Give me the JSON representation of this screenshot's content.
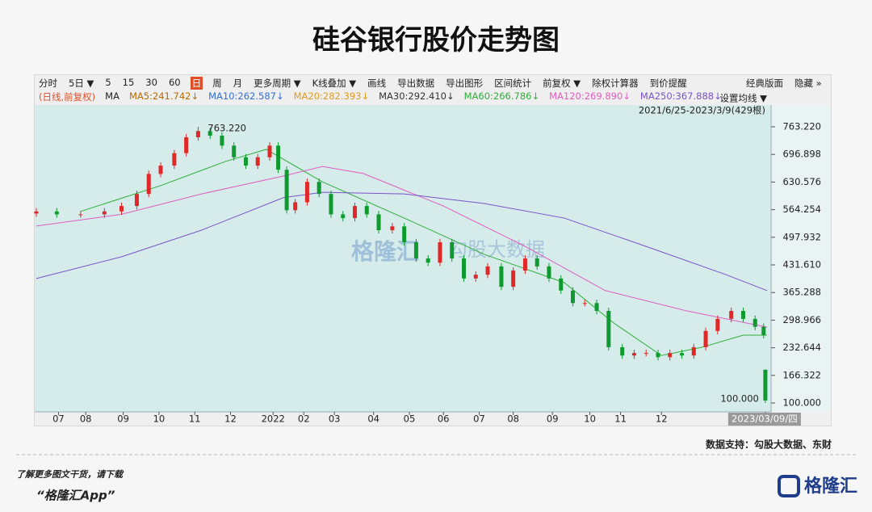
{
  "page": {
    "title": "硅谷银行股价走势图",
    "toolbar": [
      "分时",
      "5日 ▼",
      "5",
      "15",
      "30",
      "60",
      "日",
      "周",
      "月",
      "更多周期 ▼",
      "K线叠加 ▼",
      "画线",
      "导出数据",
      "导出图形",
      "区间统计",
      "前复权 ▼",
      "除权计算器",
      "到价提醒"
    ],
    "toolbar_active": "日",
    "toolbar_right": [
      "经典版面",
      "隐藏 »"
    ],
    "source": "数据支持：勾股大数据、东财",
    "footer_line1": "了解更多图文干货，请下载",
    "footer_line2": "“格隆汇App”",
    "logo": "格隆汇",
    "watermark": [
      "格隆汇",
      "勾股大数据"
    ]
  },
  "chart_data": {
    "type": "candlestick",
    "mode_label": "(日线,前复权)",
    "ma_label": "MA",
    "range_label": "2021/6/25-2023/3/9(429根)",
    "ma_setting": "设置均线 ▼",
    "high_label": "763.220",
    "low_label": "100.000",
    "x": [
      0,
      12,
      26,
      40,
      50,
      59,
      66,
      73,
      81,
      88,
      95,
      102,
      109,
      116,
      123,
      130,
      137,
      142,
      147,
      152,
      159,
      166,
      173,
      180,
      187,
      194,
      201,
      209,
      216,
      223,
      230,
      237,
      244,
      251,
      258,
      265,
      273,
      280,
      287,
      294,
      301,
      308,
      315,
      322,
      329,
      336,
      344,
      351,
      358,
      365,
      372,
      379,
      386,
      393,
      400,
      408,
      415,
      422,
      427,
      428
    ],
    "open": [
      555,
      560,
      553,
      553,
      560,
      573,
      602,
      650,
      670,
      700,
      738,
      753,
      742,
      718,
      690,
      670,
      690,
      718,
      660,
      563,
      582,
      631,
      602,
      553,
      544,
      573,
      553,
      515,
      524,
      486,
      447,
      437,
      486,
      447,
      399,
      408,
      428,
      379,
      418,
      447,
      428,
      399,
      370,
      340,
      340,
      321,
      234,
      214,
      220,
      220,
      210,
      220,
      214,
      234,
      273,
      302,
      321,
      302,
      283,
      180
    ],
    "high": [
      568,
      568,
      561,
      568,
      581,
      610,
      658,
      678,
      708,
      746,
      763.22,
      761,
      750,
      726,
      698,
      698,
      726,
      726,
      668,
      590,
      639,
      639,
      610,
      561,
      581,
      581,
      561,
      532,
      532,
      494,
      455,
      494,
      494,
      455,
      416,
      436,
      436,
      426,
      455,
      455,
      436,
      407,
      378,
      348,
      348,
      329,
      242,
      228,
      228,
      228,
      228,
      228,
      242,
      281,
      310,
      329,
      329,
      310,
      291,
      180
    ],
    "low": [
      547,
      545,
      545,
      545,
      552,
      565,
      594,
      642,
      662,
      692,
      730,
      734,
      710,
      682,
      662,
      662,
      682,
      652,
      555,
      555,
      574,
      594,
      545,
      536,
      536,
      545,
      507,
      507,
      478,
      439,
      429,
      429,
      439,
      391,
      391,
      400,
      371,
      371,
      410,
      420,
      391,
      362,
      332,
      332,
      313,
      226,
      206,
      206,
      212,
      202,
      202,
      206,
      206,
      226,
      265,
      294,
      294,
      275,
      255,
      100
    ],
    "close": [
      560,
      553,
      553,
      560,
      573,
      602,
      650,
      670,
      700,
      738,
      753,
      742,
      718,
      690,
      670,
      690,
      718,
      660,
      563,
      582,
      631,
      602,
      553,
      544,
      573,
      553,
      515,
      524,
      486,
      447,
      437,
      486,
      447,
      399,
      408,
      428,
      379,
      418,
      447,
      428,
      399,
      370,
      340,
      340,
      321,
      234,
      214,
      220,
      220,
      210,
      220,
      214,
      234,
      273,
      302,
      321,
      302,
      283,
      263,
      106
    ],
    "up_color": "#e02828",
    "down_color": "#0e9a2e",
    "series": [
      {
        "name": "MA5:241.742↓",
        "color": "#b86a00"
      },
      {
        "name": "MA10:262.587↓",
        "color": "#2f6fd8"
      },
      {
        "name": "MA20:282.393↓",
        "color": "#e09a20"
      },
      {
        "name": "MA30:292.410↓",
        "color": "#333333"
      },
      {
        "name": "MA60:266.786↓",
        "color": "#2fae3a",
        "x": [
          26,
          73,
          111,
          135,
          168,
          216,
          263,
          310,
          339,
          367,
          391,
          415,
          429
        ],
        "values": [
          560,
          622,
          680,
          709,
          631,
          544,
          457,
          389,
          292,
          214,
          234,
          263,
          263
        ]
      },
      {
        "name": "MA120:269.890↓",
        "color": "#e05cc0",
        "x": [
          0,
          50,
          97,
          145,
          168,
          192,
          239,
          287,
          334,
          382,
          429
        ],
        "values": [
          525,
          553,
          602,
          645,
          668,
          651,
          573,
          476,
          370,
          321,
          282
        ]
      },
      {
        "name": "MA250:367.888↓",
        "color": "#7b52c8",
        "x": [
          0,
          50,
          97,
          145,
          168,
          216,
          263,
          310,
          358,
          405,
          429
        ],
        "values": [
          399,
          451,
          515,
          593,
          606,
          602,
          579,
          544,
          476,
          408,
          370
        ]
      }
    ],
    "xlim": [
      0,
      429
    ],
    "ylim": [
      78.7,
      815.6
    ],
    "xticks": [
      {
        "value": 13,
        "label": "07"
      },
      {
        "value": 29,
        "label": "08"
      },
      {
        "value": 51,
        "label": "09"
      },
      {
        "value": 72,
        "label": "10"
      },
      {
        "value": 93,
        "label": "11"
      },
      {
        "value": 114,
        "label": "12"
      },
      {
        "value": 139,
        "label": "2022"
      },
      {
        "value": 157,
        "label": "02"
      },
      {
        "value": 175,
        "label": "03"
      },
      {
        "value": 198,
        "label": "04"
      },
      {
        "value": 219,
        "label": "05"
      },
      {
        "value": 239,
        "label": "06"
      },
      {
        "value": 260,
        "label": "07"
      },
      {
        "value": 280,
        "label": "08"
      },
      {
        "value": 303,
        "label": "09"
      },
      {
        "value": 325,
        "label": "10"
      },
      {
        "value": 343,
        "label": "11"
      },
      {
        "value": 367,
        "label": "12"
      },
      {
        "value": 428,
        "label": "2023/03/09/四"
      }
    ],
    "yticks": [
      {
        "value": 763.22,
        "label": "763.220"
      },
      696.898,
      630.576,
      564.254,
      497.932,
      {
        "value": 431.61,
        "label": "431.610"
      },
      365.288,
      298.966,
      232.644,
      166.322,
      {
        "value": 100,
        "label": "100.000"
      }
    ]
  }
}
